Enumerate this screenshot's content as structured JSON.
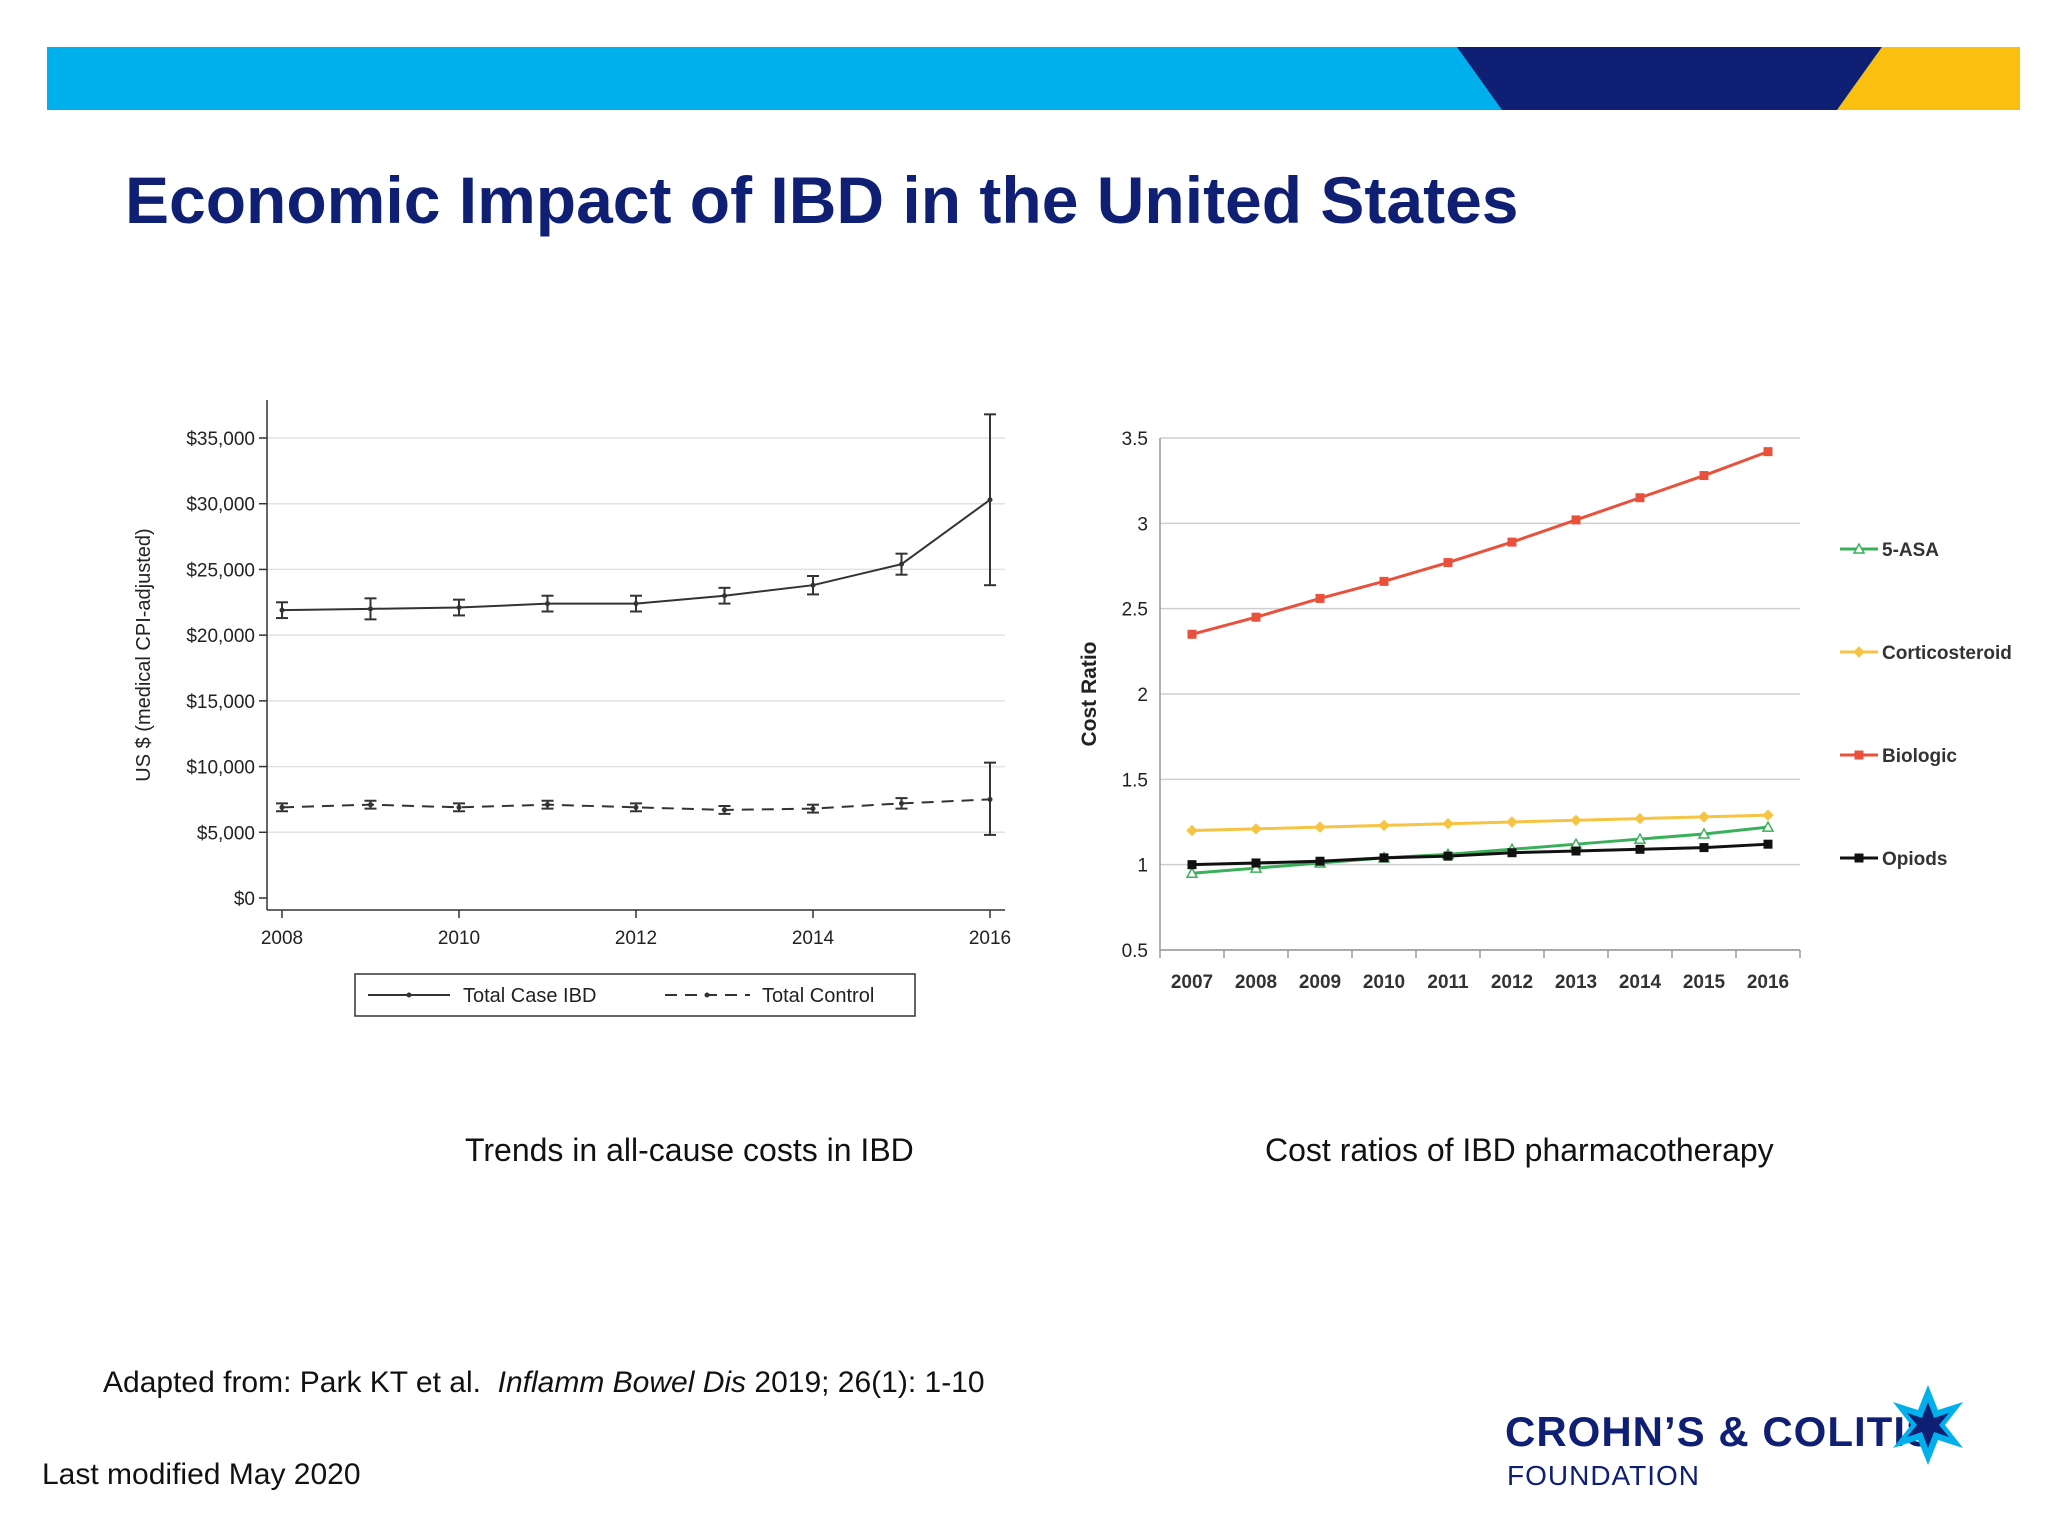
{
  "colors": {
    "banner_cyan": "#00b0ec",
    "banner_navy": "#0f1f73",
    "banner_yellow": "#fbbf0f",
    "title": "#0f1f73",
    "five_asa": "#3bb05a",
    "corticosteroid": "#f6c343",
    "biologic": "#e8513c",
    "opiods": "#111111"
  },
  "slide": {
    "title": "Economic Impact of IBD in the United States",
    "caption_left": "Trends in all-cause costs in IBD",
    "caption_right": "Cost ratios of IBD pharmacotherapy",
    "citation_prefix": "Adapted from: Park KT et al.",
    "citation_journal": "Inflamm Bowel Dis",
    "citation_suffix": "2019; 26(1): 1-10",
    "last_modified": "Last modified May 2020",
    "logo_main": "CROHN’S & COLITIS",
    "logo_sub": "FOUNDATION"
  },
  "chart_data": [
    {
      "type": "line",
      "title": "",
      "ylabel": "US $ (medical CPI-adjusted)",
      "xlabel": "",
      "ylim": [
        0,
        35000
      ],
      "xlim": [
        2008,
        2016
      ],
      "x_ticks": [
        "2008",
        "2010",
        "2012",
        "2014",
        "2016"
      ],
      "y_ticks": [
        "$0",
        "$5,000",
        "$10,000",
        "$15,000",
        "$20,000",
        "$25,000",
        "$30,000",
        "$35,000"
      ],
      "grid": true,
      "legend": "bottom",
      "x": [
        2008,
        2009,
        2010,
        2011,
        2012,
        2013,
        2014,
        2015,
        2016
      ],
      "series": [
        {
          "name": "Total Case IBD",
          "style": "solid",
          "values": [
            21900,
            22000,
            22100,
            22400,
            22400,
            23000,
            23800,
            25400,
            30300
          ],
          "err_low": [
            21300,
            21200,
            21500,
            21800,
            21800,
            22400,
            23100,
            24600,
            23800
          ],
          "err_high": [
            22500,
            22800,
            22700,
            23000,
            23000,
            23600,
            24500,
            26200,
            36800
          ]
        },
        {
          "name": "Total Control",
          "style": "dashed",
          "values": [
            6900,
            7100,
            6900,
            7100,
            6900,
            6700,
            6800,
            7200,
            7500
          ],
          "err_low": [
            6600,
            6800,
            6600,
            6800,
            6600,
            6400,
            6500,
            6800,
            4800
          ],
          "err_high": [
            7200,
            7400,
            7200,
            7400,
            7200,
            7000,
            7100,
            7600,
            10300
          ]
        }
      ]
    },
    {
      "type": "line",
      "title": "",
      "ylabel": "Cost Ratio",
      "xlabel": "",
      "ylim": [
        0.5,
        3.5
      ],
      "categories": [
        "2007",
        "2008",
        "2009",
        "2010",
        "2011",
        "2012",
        "2013",
        "2014",
        "2015",
        "2016"
      ],
      "y_ticks": [
        "0.5",
        "1",
        "1.5",
        "2",
        "2.5",
        "3",
        "3.5"
      ],
      "grid": true,
      "legend": "right",
      "series": [
        {
          "name": "5-ASA",
          "color": "#3bb05a",
          "marker": "triangle",
          "values": [
            0.95,
            0.98,
            1.01,
            1.04,
            1.06,
            1.09,
            1.12,
            1.15,
            1.18,
            1.22
          ]
        },
        {
          "name": "Corticosteroid",
          "color": "#f6c343",
          "marker": "diamond",
          "values": [
            1.2,
            1.21,
            1.22,
            1.23,
            1.24,
            1.25,
            1.26,
            1.27,
            1.28,
            1.29
          ]
        },
        {
          "name": "Biologic",
          "color": "#e8513c",
          "marker": "square",
          "values": [
            2.35,
            2.45,
            2.56,
            2.66,
            2.77,
            2.89,
            3.02,
            3.15,
            3.28,
            3.42
          ]
        },
        {
          "name": "Opiods",
          "color": "#111111",
          "marker": "square",
          "values": [
            1.0,
            1.01,
            1.02,
            1.04,
            1.05,
            1.07,
            1.08,
            1.09,
            1.1,
            1.12
          ]
        }
      ]
    }
  ]
}
